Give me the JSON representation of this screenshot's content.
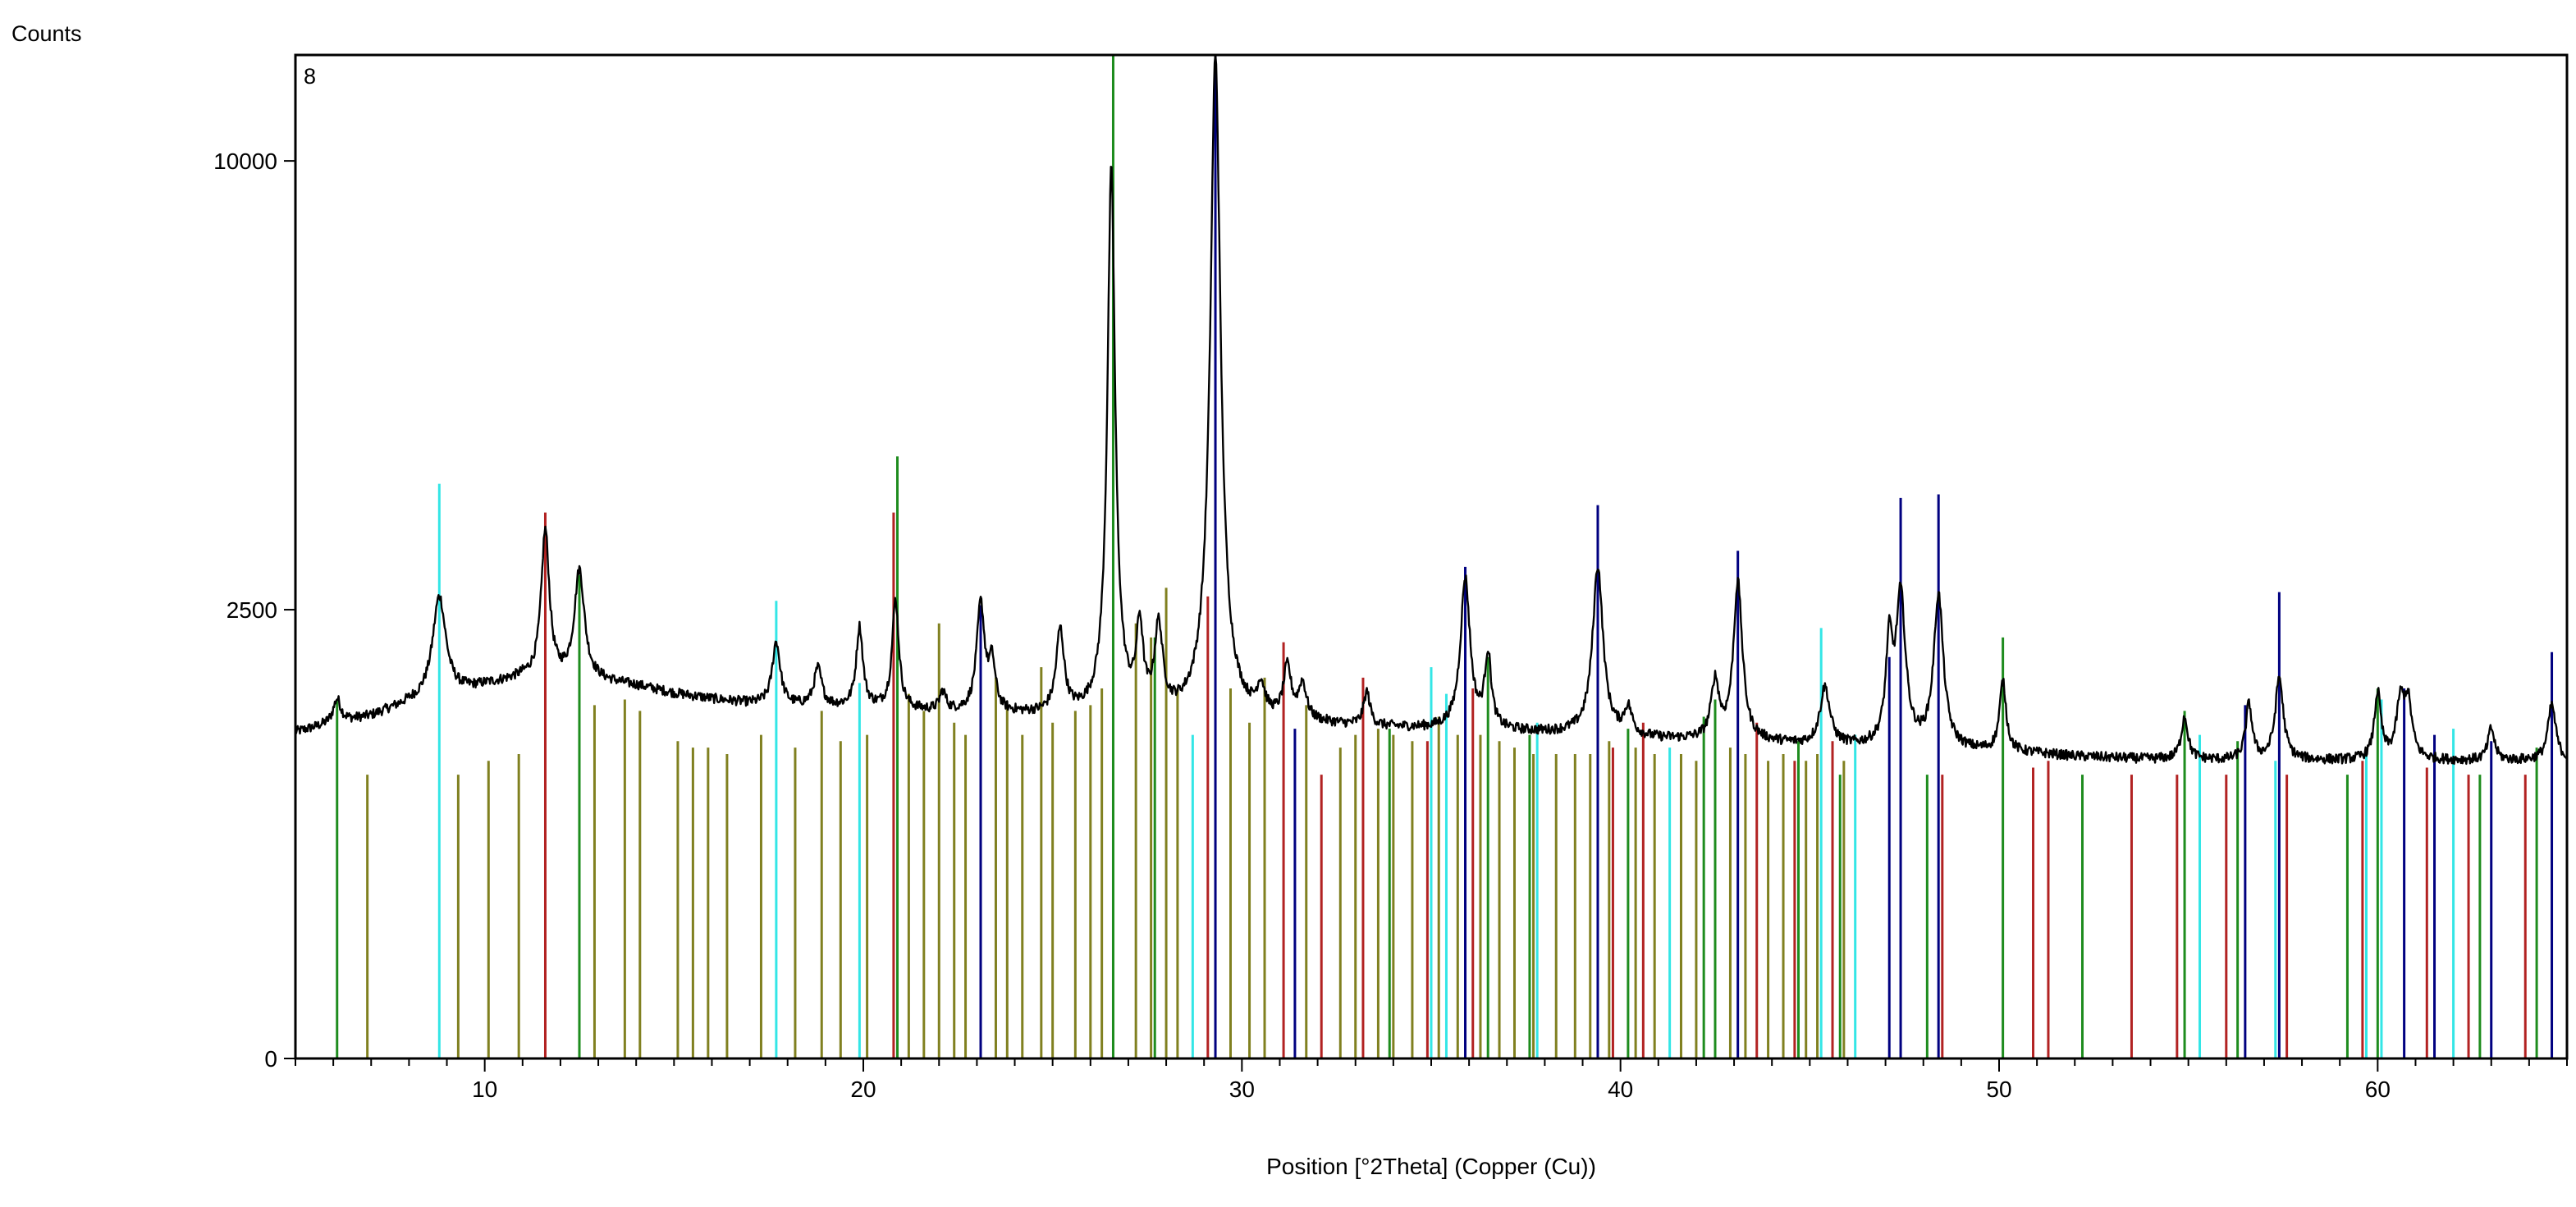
{
  "chart_data": {
    "type": "line",
    "panel_label": "8",
    "ylabel": "Counts",
    "xlabel": "Position [°2Theta] (Copper (Cu))",
    "xlim": [
      5,
      65
    ],
    "y_scale": "sqrt",
    "ylim": [
      0,
      12500
    ],
    "x_ticks": [
      10,
      20,
      30,
      40,
      50,
      60
    ],
    "y_ticks": [
      0,
      2500,
      10000
    ],
    "grid": false,
    "legend": "none",
    "series": [
      {
        "color": "#000000",
        "background": [
          [
            5,
            1320
          ],
          [
            6,
            1390
          ],
          [
            7,
            1450
          ],
          [
            8,
            1560
          ],
          [
            9,
            1620
          ],
          [
            10,
            1720
          ],
          [
            11,
            1790
          ],
          [
            12,
            1770
          ],
          [
            13,
            1760
          ],
          [
            14,
            1720
          ],
          [
            15,
            1650
          ],
          [
            16,
            1600
          ],
          [
            17,
            1560
          ],
          [
            18,
            1540
          ],
          [
            19,
            1530
          ],
          [
            20,
            1520
          ],
          [
            21,
            1500
          ],
          [
            22,
            1480
          ],
          [
            23,
            1470
          ],
          [
            24,
            1460
          ],
          [
            25,
            1450
          ],
          [
            26,
            1440
          ],
          [
            27,
            1430
          ],
          [
            28,
            1420
          ],
          [
            29,
            1410
          ],
          [
            30,
            1400
          ],
          [
            31,
            1390
          ],
          [
            32,
            1380
          ],
          [
            33,
            1360
          ],
          [
            34,
            1350
          ],
          [
            35,
            1340
          ],
          [
            36,
            1330
          ],
          [
            37,
            1320
          ],
          [
            38,
            1310
          ],
          [
            39,
            1300
          ],
          [
            40,
            1280
          ],
          [
            41,
            1260
          ],
          [
            42,
            1250
          ],
          [
            43,
            1240
          ],
          [
            44,
            1230
          ],
          [
            45,
            1210
          ],
          [
            46,
            1200
          ],
          [
            47,
            1190
          ],
          [
            48,
            1180
          ],
          [
            49,
            1170
          ],
          [
            50,
            1160
          ],
          [
            51,
            1150
          ],
          [
            52,
            1130
          ],
          [
            53,
            1120
          ],
          [
            54,
            1110
          ],
          [
            55,
            1110
          ],
          [
            56,
            1100
          ],
          [
            57,
            1100
          ],
          [
            58,
            1100
          ],
          [
            59,
            1100
          ],
          [
            60,
            1100
          ],
          [
            61,
            1100
          ],
          [
            62,
            1100
          ],
          [
            63,
            1100
          ],
          [
            64,
            1100
          ],
          [
            65,
            1100
          ]
        ],
        "peaks": [
          [
            6.1,
            1600,
            0.12
          ],
          [
            8.8,
            2650,
            0.2
          ],
          [
            11.6,
            3450,
            0.12
          ],
          [
            12.5,
            2950,
            0.15
          ],
          [
            17.7,
            2150,
            0.12
          ],
          [
            18.8,
            1880,
            0.12
          ],
          [
            19.9,
            2300,
            0.1
          ],
          [
            20.85,
            2600,
            0.1
          ],
          [
            22.1,
            1650,
            0.1
          ],
          [
            23.1,
            2550,
            0.12
          ],
          [
            23.4,
            1900,
            0.1
          ],
          [
            25.2,
            2250,
            0.12
          ],
          [
            26.55,
            9800,
            0.1
          ],
          [
            27.3,
            2250,
            0.1
          ],
          [
            27.8,
            2250,
            0.12
          ],
          [
            29.3,
            12500,
            0.13
          ],
          [
            30.5,
            1650,
            0.12
          ],
          [
            31.2,
            1850,
            0.12
          ],
          [
            31.6,
            1700,
            0.12
          ],
          [
            33.3,
            1650,
            0.1
          ],
          [
            35.9,
            2850,
            0.14
          ],
          [
            36.5,
            2000,
            0.1
          ],
          [
            39.4,
            3000,
            0.15
          ],
          [
            40.2,
            1500,
            0.12
          ],
          [
            42.5,
            1750,
            0.12
          ],
          [
            43.1,
            2800,
            0.13
          ],
          [
            45.4,
            1700,
            0.15
          ],
          [
            47.1,
            2100,
            0.1
          ],
          [
            47.4,
            2650,
            0.14
          ],
          [
            48.4,
            2650,
            0.14
          ],
          [
            50.1,
            1750,
            0.1
          ],
          [
            54.9,
            1450,
            0.1
          ],
          [
            56.6,
            1550,
            0.1
          ],
          [
            57.4,
            1800,
            0.12
          ],
          [
            60.0,
            1650,
            0.1
          ],
          [
            60.6,
            1550,
            0.12
          ],
          [
            60.8,
            1550,
            0.12
          ],
          [
            63.0,
            1350,
            0.1
          ],
          [
            64.6,
            1550,
            0.12
          ]
        ]
      }
    ],
    "reference_patterns": [
      {
        "color": "#33e6e6",
        "lines": [
          [
            8.8,
            4100
          ],
          [
            17.7,
            2600
          ],
          [
            19.9,
            1750
          ],
          [
            26.6,
            4300
          ],
          [
            28.7,
            1300
          ],
          [
            35.0,
            1900
          ],
          [
            35.4,
            1650
          ],
          [
            37.8,
            1400
          ],
          [
            41.3,
            1200
          ],
          [
            45.3,
            2300
          ],
          [
            46.2,
            1300
          ],
          [
            55.3,
            1300
          ],
          [
            57.3,
            1100
          ],
          [
            59.7,
            1200
          ],
          [
            60.1,
            1600
          ],
          [
            62.0,
            1350
          ]
        ]
      },
      {
        "color": "#b22222",
        "lines": [
          [
            11.6,
            3700
          ],
          [
            20.8,
            3700
          ],
          [
            29.1,
            2650
          ],
          [
            31.1,
            2150
          ],
          [
            32.1,
            1000
          ],
          [
            33.2,
            1800
          ],
          [
            34.9,
            1250
          ],
          [
            36.1,
            1700
          ],
          [
            39.8,
            1200
          ],
          [
            40.6,
            1400
          ],
          [
            43.6,
            1400
          ],
          [
            44.6,
            1100
          ],
          [
            45.6,
            1250
          ],
          [
            48.5,
            1000
          ],
          [
            50.9,
            1050
          ],
          [
            51.3,
            1100
          ],
          [
            53.5,
            1000
          ],
          [
            54.7,
            1000
          ],
          [
            56.0,
            1000
          ],
          [
            57.6,
            1000
          ],
          [
            59.6,
            1100
          ],
          [
            61.3,
            1050
          ],
          [
            62.4,
            1000
          ],
          [
            63.9,
            1000
          ],
          [
            65.0,
            1000
          ]
        ]
      },
      {
        "color": "#1e8c1e",
        "lines": [
          [
            6.1,
            1600
          ],
          [
            12.5,
            2900
          ],
          [
            20.9,
            4500
          ],
          [
            26.6,
            12500
          ],
          [
            27.7,
            2200
          ],
          [
            33.9,
            1350
          ],
          [
            36.5,
            2000
          ],
          [
            37.6,
            1300
          ],
          [
            40.2,
            1350
          ],
          [
            42.2,
            1450
          ],
          [
            42.5,
            1600
          ],
          [
            44.7,
            1250
          ],
          [
            45.8,
            1000
          ],
          [
            48.1,
            1000
          ],
          [
            50.1,
            2200
          ],
          [
            52.2,
            1000
          ],
          [
            54.9,
            1500
          ],
          [
            56.3,
            1250
          ],
          [
            59.2,
            1000
          ],
          [
            60.0,
            1700
          ],
          [
            62.7,
            1000
          ],
          [
            64.2,
            1200
          ]
        ]
      },
      {
        "color": "#000080",
        "lines": [
          [
            23.1,
            2550
          ],
          [
            29.3,
            12500
          ],
          [
            31.4,
            1350
          ],
          [
            35.9,
            3000
          ],
          [
            39.4,
            3800
          ],
          [
            43.1,
            3200
          ],
          [
            47.1,
            2000
          ],
          [
            47.4,
            3900
          ],
          [
            48.4,
            3950
          ],
          [
            56.5,
            1550
          ],
          [
            57.4,
            2700
          ],
          [
            60.7,
            1700
          ],
          [
            61.5,
            1300
          ],
          [
            63.0,
            1250
          ],
          [
            64.6,
            2050
          ]
        ]
      },
      {
        "color": "#808020",
        "lines": [
          [
            6.9,
            1000
          ],
          [
            9.3,
            1000
          ],
          [
            10.1,
            1100
          ],
          [
            10.9,
            1150
          ],
          [
            12.9,
            1550
          ],
          [
            13.7,
            1600
          ],
          [
            14.1,
            1500
          ],
          [
            15.1,
            1250
          ],
          [
            15.5,
            1200
          ],
          [
            15.9,
            1200
          ],
          [
            16.4,
            1150
          ],
          [
            17.3,
            1300
          ],
          [
            18.2,
            1200
          ],
          [
            18.9,
            1500
          ],
          [
            19.4,
            1250
          ],
          [
            20.1,
            1300
          ],
          [
            21.2,
            1650
          ],
          [
            21.6,
            1500
          ],
          [
            22.0,
            2350
          ],
          [
            22.4,
            1400
          ],
          [
            22.7,
            1300
          ],
          [
            23.5,
            1800
          ],
          [
            23.8,
            1550
          ],
          [
            24.2,
            1300
          ],
          [
            24.7,
            1900
          ],
          [
            25.0,
            1400
          ],
          [
            25.6,
            1500
          ],
          [
            26.0,
            1550
          ],
          [
            26.3,
            1700
          ],
          [
            27.2,
            2350
          ],
          [
            27.6,
            2200
          ],
          [
            28.0,
            2750
          ],
          [
            28.3,
            1700
          ],
          [
            29.7,
            1700
          ],
          [
            30.2,
            1400
          ],
          [
            30.6,
            1800
          ],
          [
            31.7,
            1550
          ],
          [
            32.6,
            1200
          ],
          [
            33.0,
            1300
          ],
          [
            33.6,
            1350
          ],
          [
            34.0,
            1300
          ],
          [
            34.5,
            1250
          ],
          [
            35.2,
            1450
          ],
          [
            35.7,
            1300
          ],
          [
            36.3,
            1300
          ],
          [
            36.8,
            1250
          ],
          [
            37.2,
            1200
          ],
          [
            37.7,
            1150
          ],
          [
            38.3,
            1150
          ],
          [
            38.8,
            1150
          ],
          [
            39.2,
            1150
          ],
          [
            39.7,
            1250
          ],
          [
            40.4,
            1200
          ],
          [
            40.9,
            1150
          ],
          [
            41.6,
            1150
          ],
          [
            42.0,
            1100
          ],
          [
            42.9,
            1200
          ],
          [
            43.3,
            1150
          ],
          [
            43.9,
            1100
          ],
          [
            44.3,
            1150
          ],
          [
            44.9,
            1100
          ],
          [
            45.2,
            1150
          ],
          [
            45.9,
            1100
          ]
        ]
      }
    ]
  }
}
